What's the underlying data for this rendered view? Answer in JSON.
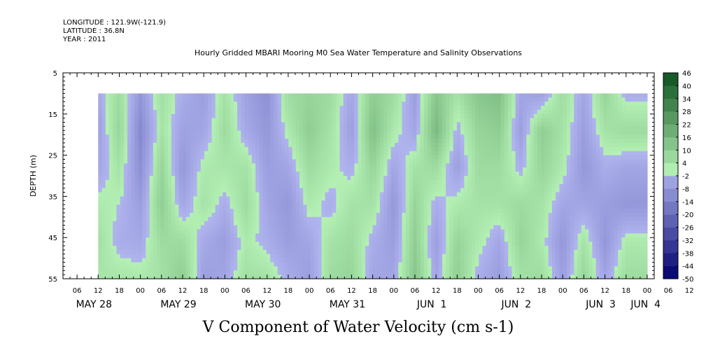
{
  "header": {
    "longitude": "LONGITUDE : 121.9W(-121.9)",
    "latitude": "LATITUDE : 36.8N",
    "year": "YEAR : 2011"
  },
  "chart_data": {
    "type": "heatmap",
    "title": "Hourly Gridded MBARI Mooring M0 Sea Water Temperature and Salinity Observations",
    "xlabel": "V Component of Water Velocity (cm s-1)",
    "ylabel": "DEPTH (m)",
    "ylim": [
      5,
      55
    ],
    "y_inverted": true,
    "y_ticks": [
      5,
      15,
      25,
      35,
      45,
      55
    ],
    "x_hour_ticks": [
      "06",
      "12",
      "18",
      "00",
      "06",
      "12",
      "18",
      "00",
      "06",
      "12",
      "18",
      "00",
      "06",
      "12",
      "18",
      "00",
      "06",
      "12",
      "18",
      "00",
      "06",
      "12",
      "18",
      "00",
      "06",
      "12",
      "18",
      "00",
      "06",
      "12",
      "18",
      "00"
    ],
    "x_day_labels": [
      "MAY 28",
      "MAY 29",
      "MAY 30",
      "MAY 31",
      "JUN  1",
      "JUN  2",
      "JUN  3",
      "JUN  4"
    ],
    "data_depth_range": [
      10,
      55
    ],
    "data_time_start": "2011-05-28 12:00",
    "data_time_end": "2011-06-04 00:00",
    "colorbar": {
      "levels": [
        -50,
        -44,
        -38,
        -32,
        -26,
        -20,
        -14,
        -8,
        -2,
        4,
        10,
        16,
        22,
        28,
        34,
        40,
        46
      ],
      "tick_labels": [
        "46",
        "40",
        "34",
        "28",
        "22",
        "16",
        "10",
        "4",
        "-2",
        "-8",
        "-14",
        "-20",
        "-26",
        "-32",
        "-38",
        "-44",
        "-50"
      ],
      "negative_color": "#4a58d8",
      "positive_color": "#22d64a"
    },
    "column_profiles_cm_s": [
      {
        "time": "2011-05-28 12:00",
        "values": [
          -3,
          -6,
          -4,
          2,
          5,
          3
        ]
      },
      {
        "time": "2011-05-28 18:00",
        "values": [
          6,
          8,
          4,
          0,
          -2,
          3
        ]
      },
      {
        "time": "2011-05-29 00:00",
        "values": [
          -8,
          -12,
          -10,
          -6,
          -3,
          2
        ]
      },
      {
        "time": "2011-05-29 06:00",
        "values": [
          5,
          4,
          8,
          10,
          6,
          4
        ]
      },
      {
        "time": "2011-05-29 12:00",
        "values": [
          -2,
          -5,
          -8,
          -4,
          6,
          10
        ]
      },
      {
        "time": "2011-05-29 18:00",
        "values": [
          -6,
          -4,
          2,
          4,
          -3,
          -6
        ]
      },
      {
        "time": "2011-05-30 00:00",
        "values": [
          4,
          6,
          3,
          -2,
          -6,
          -4
        ]
      },
      {
        "time": "2011-05-30 06:00",
        "values": [
          -5,
          -3,
          4,
          6,
          2,
          5
        ]
      },
      {
        "time": "2011-05-30 12:00",
        "values": [
          -10,
          -8,
          -6,
          -4,
          -2,
          4
        ]
      },
      {
        "time": "2011-05-30 18:00",
        "values": [
          6,
          2,
          -4,
          -8,
          -6,
          -2
        ]
      },
      {
        "time": "2011-05-31 00:00",
        "values": [
          8,
          10,
          6,
          2,
          -4,
          -6
        ]
      },
      {
        "time": "2011-05-31 06:00",
        "values": [
          6,
          4,
          2,
          -2,
          4,
          6
        ]
      },
      {
        "time": "2011-05-31 12:00",
        "values": [
          -4,
          -6,
          -2,
          4,
          6,
          8
        ]
      },
      {
        "time": "2011-05-31 18:00",
        "values": [
          10,
          14,
          8,
          4,
          -2,
          -4
        ]
      },
      {
        "time": "2011-06-01 00:00",
        "values": [
          6,
          2,
          -4,
          -8,
          -6,
          -4
        ]
      },
      {
        "time": "2011-06-01 06:00",
        "values": [
          -6,
          -4,
          4,
          8,
          10,
          12
        ]
      },
      {
        "time": "2011-06-01 12:00",
        "values": [
          12,
          16,
          6,
          -2,
          -6,
          -4
        ]
      },
      {
        "time": "2011-06-01 18:00",
        "values": [
          4,
          -2,
          -6,
          2,
          8,
          10
        ]
      },
      {
        "time": "2011-06-02 00:00",
        "values": [
          12,
          8,
          6,
          4,
          2,
          -2
        ]
      },
      {
        "time": "2011-06-02 06:00",
        "values": [
          14,
          10,
          6,
          4,
          -4,
          -6
        ]
      },
      {
        "time": "2011-06-02 12:00",
        "values": [
          -4,
          -6,
          -2,
          6,
          8,
          4
        ]
      },
      {
        "time": "2011-06-02 18:00",
        "values": [
          -6,
          10,
          8,
          4,
          2,
          6
        ]
      },
      {
        "time": "2011-06-03 00:00",
        "values": [
          6,
          4,
          2,
          -4,
          -8,
          -6
        ]
      },
      {
        "time": "2011-06-03 06:00",
        "values": [
          -4,
          -6,
          -8,
          -4,
          4,
          8
        ]
      },
      {
        "time": "2011-06-03 12:00",
        "values": [
          8,
          4,
          -2,
          -6,
          -8,
          -4
        ]
      },
      {
        "time": "2011-06-03 18:00",
        "values": [
          -2,
          6,
          -4,
          -8,
          2,
          6
        ]
      }
    ]
  }
}
